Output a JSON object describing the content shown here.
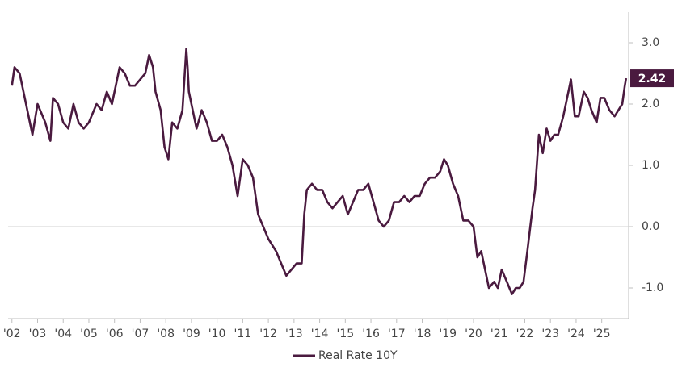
{
  "chart_data": {
    "type": "line",
    "xlim": [
      2001.85,
      2026.05
    ],
    "ylim": [
      -1.5,
      3.5
    ],
    "xticks": [
      {
        "value": 2002,
        "label": "'02"
      },
      {
        "value": 2003,
        "label": "'03"
      },
      {
        "value": 2004,
        "label": "'04"
      },
      {
        "value": 2005,
        "label": "'05"
      },
      {
        "value": 2006,
        "label": "'06"
      },
      {
        "value": 2007,
        "label": "'07"
      },
      {
        "value": 2008,
        "label": "'08"
      },
      {
        "value": 2009,
        "label": "'09"
      },
      {
        "value": 2010,
        "label": "'10"
      },
      {
        "value": 2011,
        "label": "'11"
      },
      {
        "value": 2012,
        "label": "'12"
      },
      {
        "value": 2013,
        "label": "'13"
      },
      {
        "value": 2014,
        "label": "'14"
      },
      {
        "value": 2015,
        "label": "'15"
      },
      {
        "value": 2016,
        "label": "'16"
      },
      {
        "value": 2017,
        "label": "'17"
      },
      {
        "value": 2018,
        "label": "'18"
      },
      {
        "value": 2019,
        "label": "'19"
      },
      {
        "value": 2020,
        "label": "'20"
      },
      {
        "value": 2021,
        "label": "'21"
      },
      {
        "value": 2022,
        "label": "'22"
      },
      {
        "value": 2023,
        "label": "'23"
      },
      {
        "value": 2024,
        "label": "'24"
      },
      {
        "value": 2025,
        "label": "'25"
      }
    ],
    "yticks": [
      {
        "value": -1,
        "label": "-1.0"
      },
      {
        "value": 0,
        "label": "0.0"
      },
      {
        "value": 1,
        "label": "1.0"
      },
      {
        "value": 2,
        "label": "2.0"
      },
      {
        "value": 3,
        "label": "3.0"
      }
    ],
    "reference_line": 0,
    "y_axis_side": "right",
    "legend": "bottom",
    "x": [
      2002.0,
      2002.1,
      2002.3,
      2002.5,
      2002.7,
      2002.8,
      2003.0,
      2003.3,
      2003.5,
      2003.6,
      2003.8,
      2004.0,
      2004.2,
      2004.4,
      2004.6,
      2004.8,
      2005.0,
      2005.3,
      2005.5,
      2005.7,
      2005.9,
      2006.0,
      2006.2,
      2006.4,
      2006.6,
      2006.8,
      2007.0,
      2007.2,
      2007.35,
      2007.5,
      2007.6,
      2007.8,
      2007.95,
      2008.1,
      2008.25,
      2008.45,
      2008.65,
      2008.8,
      2008.85,
      2008.9,
      2009.0,
      2009.2,
      2009.4,
      2009.6,
      2009.8,
      2010.0,
      2010.2,
      2010.4,
      2010.6,
      2010.8,
      2011.0,
      2011.2,
      2011.4,
      2011.6,
      2011.8,
      2012.0,
      2012.3,
      2012.5,
      2012.7,
      2012.9,
      2013.1,
      2013.3,
      2013.4,
      2013.5,
      2013.7,
      2013.9,
      2014.1,
      2014.3,
      2014.5,
      2014.7,
      2014.9,
      2015.1,
      2015.3,
      2015.5,
      2015.7,
      2015.9,
      2016.1,
      2016.3,
      2016.5,
      2016.7,
      2016.9,
      2017.1,
      2017.3,
      2017.5,
      2017.7,
      2017.9,
      2018.1,
      2018.3,
      2018.5,
      2018.7,
      2018.85,
      2019.0,
      2019.2,
      2019.4,
      2019.6,
      2019.8,
      2020.0,
      2020.15,
      2020.3,
      2020.45,
      2020.6,
      2020.8,
      2020.95,
      2021.1,
      2021.3,
      2021.5,
      2021.65,
      2021.8,
      2021.95,
      2022.1,
      2022.3,
      2022.4,
      2022.55,
      2022.7,
      2022.85,
      2023.0,
      2023.15,
      2023.3,
      2023.5,
      2023.7,
      2023.8,
      2023.95,
      2024.1,
      2024.3,
      2024.45,
      2024.6,
      2024.8,
      2024.95,
      2025.1,
      2025.3,
      2025.5,
      2025.65,
      2025.8,
      2025.9,
      2025.95
    ],
    "series": [
      {
        "name": "Real Rate 10Y",
        "color": "#4a1a3f",
        "values": [
          2.3,
          2.6,
          2.5,
          2.1,
          1.7,
          1.5,
          2.0,
          1.7,
          1.4,
          2.1,
          2.0,
          1.7,
          1.6,
          2.0,
          1.7,
          1.6,
          1.7,
          2.0,
          1.9,
          2.2,
          2.0,
          2.2,
          2.6,
          2.5,
          2.3,
          2.3,
          2.4,
          2.5,
          2.8,
          2.6,
          2.2,
          1.9,
          1.3,
          1.1,
          1.7,
          1.6,
          1.9,
          2.9,
          2.6,
          2.2,
          2.0,
          1.6,
          1.9,
          1.7,
          1.4,
          1.4,
          1.5,
          1.3,
          1.0,
          0.5,
          1.1,
          1.0,
          0.8,
          0.2,
          0.0,
          -0.2,
          -0.4,
          -0.6,
          -0.8,
          -0.7,
          -0.6,
          -0.6,
          0.2,
          0.6,
          0.7,
          0.6,
          0.6,
          0.4,
          0.3,
          0.4,
          0.5,
          0.2,
          0.4,
          0.6,
          0.6,
          0.7,
          0.4,
          0.1,
          0.0,
          0.1,
          0.4,
          0.4,
          0.5,
          0.4,
          0.5,
          0.5,
          0.7,
          0.8,
          0.8,
          0.9,
          1.1,
          1.0,
          0.7,
          0.5,
          0.1,
          0.1,
          0.0,
          -0.5,
          -0.4,
          -0.7,
          -1.0,
          -0.9,
          -1.0,
          -0.7,
          -0.9,
          -1.1,
          -1.0,
          -1.0,
          -0.9,
          -0.4,
          0.3,
          0.6,
          1.5,
          1.2,
          1.6,
          1.4,
          1.5,
          1.5,
          1.8,
          2.2,
          2.4,
          1.8,
          1.8,
          2.2,
          2.1,
          1.9,
          1.7,
          2.1,
          2.1,
          1.9,
          1.8,
          1.9,
          2.0,
          2.3,
          2.42
        ]
      }
    ]
  }
}
